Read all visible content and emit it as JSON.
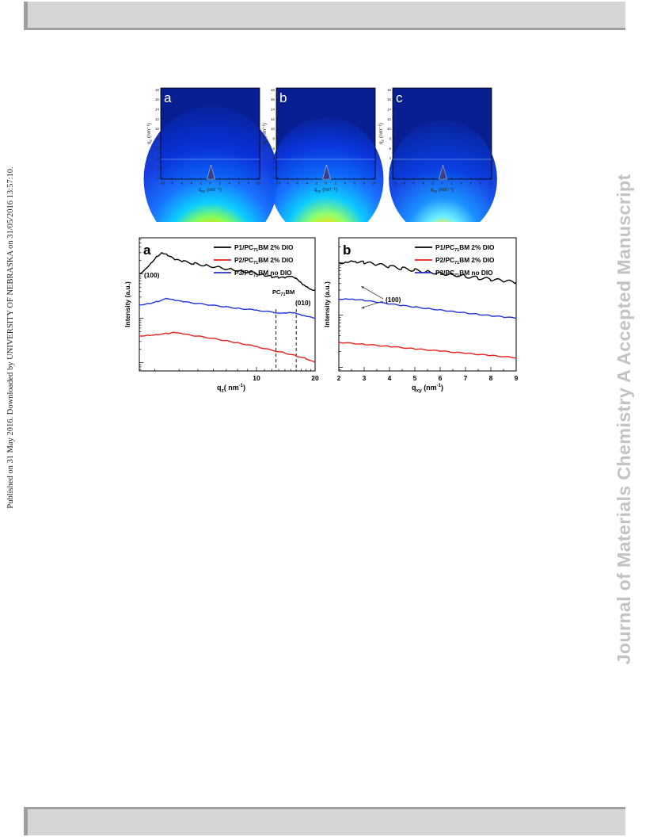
{
  "side_text": {
    "left": "Published on 31 May 2016. Downloaded by UNIVERSITY OF NEBRASKA on 31/05/2016 13:57:10.",
    "right": "Journal of Materials Chemistry A Accepted Manuscript"
  },
  "colors": {
    "p1": "#000000",
    "p2": "#e8201c",
    "p3": "#2032d8",
    "bars": "#d6d6d6"
  },
  "giwaxs_panels": [
    {
      "label": "a",
      "ylabel": "q",
      "ysub": "z",
      "yunit": "(nm⁻¹)",
      "xlabel": "q",
      "xsub": "xy",
      "xunit": "(nm⁻¹)",
      "yticks": [
        "18",
        "16",
        "14",
        "12",
        "10",
        "8",
        "6",
        "4",
        "2",
        "0"
      ],
      "xticks": [
        "-10",
        "-8",
        "-6",
        "-4",
        "-2",
        "0",
        "2",
        "4",
        "6",
        "8",
        "10"
      ]
    },
    {
      "label": "b",
      "ylabel": "q",
      "ysub": "z",
      "yunit": "(nm⁻¹)",
      "xlabel": "q",
      "xsub": "xy",
      "xunit": "(nm⁻¹)",
      "yticks": [
        "18",
        "16",
        "14",
        "12",
        "10",
        "8",
        "6",
        "4",
        "2",
        "0"
      ],
      "xticks": [
        "-10",
        "-8",
        "-6",
        "-4",
        "-2",
        "0",
        "2",
        "4",
        "6",
        "8",
        "10"
      ]
    },
    {
      "label": "c",
      "ylabel": "q",
      "ysub": "z",
      "yunit": "(nm⁻¹)",
      "xlabel": "q",
      "xsub": "xy",
      "xunit": "(nm⁻¹)",
      "yticks": [
        "18",
        "16",
        "14",
        "12",
        "10",
        "8",
        "6",
        "4",
        "2",
        "0"
      ],
      "xticks": [
        "-10",
        "-8",
        "-6",
        "-4",
        "-2",
        "0",
        "2",
        "4",
        "6",
        "8",
        "10"
      ]
    }
  ],
  "legend": [
    {
      "pre": "P1/PC",
      "sub": "71",
      "post": "BM 2% DIO",
      "color": "#000000"
    },
    {
      "pre": "P2/PC",
      "sub": "71",
      "post": "BM 2% DIO",
      "color": "#e8201c"
    },
    {
      "pre": "P3/PC",
      "sub": "71",
      "post": "BM no DIO",
      "color": "#2032d8"
    }
  ],
  "chart_data": [
    {
      "type": "line",
      "panel_label": "a",
      "xlabel_main": "q",
      "xlabel_sub": "z",
      "xlabel_unit": "( nm",
      "xlabel_sup": "-1",
      "xlabel_end": ")",
      "ylabel": "Intensity (a.u.)",
      "x_scale": "log",
      "y_scale": "log",
      "xlim": [
        2.5,
        20
      ],
      "x_tick_labels": [
        {
          "x": 10,
          "label": "10"
        },
        {
          "x": 20,
          "label": "20"
        }
      ],
      "annotations": [
        {
          "text": "(100)",
          "x": 3.3
        },
        {
          "text": "PC",
          "sub": "71",
          "post": "BM",
          "x": 14
        },
        {
          "text": "(010)",
          "x": 18
        }
      ],
      "reference_lines_x": [
        12.6,
        16.0
      ],
      "series": [
        {
          "name": "P1/PC71BM 2% DIO",
          "x": [
            2.5,
            2.7,
            2.9,
            3.1,
            3.3,
            3.5,
            3.8,
            4.2,
            4.8,
            5.5,
            6.5,
            7.5,
            8.5,
            10,
            11,
            12,
            13,
            14,
            14.5,
            15.2,
            16,
            16.8,
            17.5,
            18.2,
            19,
            20
          ],
          "y": [
            1.0,
            1.35,
            1.9,
            2.6,
            3.0,
            2.6,
            2.05,
            1.9,
            1.7,
            1.55,
            1.38,
            1.25,
            1.16,
            1.02,
            0.94,
            0.86,
            0.82,
            0.8,
            0.84,
            0.83,
            0.76,
            0.64,
            0.56,
            0.52,
            0.47,
            0.43
          ]
        },
        {
          "name": "P2/PC71BM 2% DIO",
          "x": [
            2.5,
            2.8,
            3.1,
            3.5,
            3.8,
            4.2,
            5,
            6,
            7,
            8,
            10,
            12,
            14,
            16,
            18,
            20
          ],
          "y": [
            0.04,
            0.0415,
            0.043,
            0.0455,
            0.048,
            0.044,
            0.0395,
            0.035,
            0.031,
            0.028,
            0.023,
            0.019,
            0.0165,
            0.0142,
            0.0123,
            0.01
          ]
        },
        {
          "name": "P3/PC71BM no DIO",
          "x": [
            2.5,
            2.8,
            3.1,
            3.5,
            3.8,
            4.2,
            5,
            6,
            7,
            8,
            10,
            12,
            13,
            14,
            15,
            16,
            17,
            18,
            20
          ],
          "y": [
            0.2,
            0.215,
            0.24,
            0.28,
            0.255,
            0.235,
            0.215,
            0.195,
            0.18,
            0.168,
            0.152,
            0.138,
            0.132,
            0.133,
            0.136,
            0.13,
            0.118,
            0.11,
            0.1
          ]
        }
      ]
    },
    {
      "type": "line",
      "panel_label": "b",
      "xlabel_main": "q",
      "xlabel_sub": "xy",
      "xlabel_unit": " (nm",
      "xlabel_sup": "-1",
      "xlabel_end": ")",
      "ylabel": "Intensity (a.u.)",
      "x_scale": "linear",
      "y_scale": "log",
      "xlim": [
        2,
        9
      ],
      "x_tick_labels": [
        {
          "x": 2,
          "label": "2"
        },
        {
          "x": 3,
          "label": "3"
        },
        {
          "x": 4,
          "label": "4"
        },
        {
          "x": 5,
          "label": "5"
        },
        {
          "x": 6,
          "label": "6"
        },
        {
          "x": 7,
          "label": "7"
        },
        {
          "x": 8,
          "label": "8"
        },
        {
          "x": 9,
          "label": "9"
        }
      ],
      "annotations": [
        {
          "text": "(100)",
          "x": 3.4
        }
      ],
      "series": [
        {
          "name": "P1/PC71BM 2% DIO",
          "x": [
            2,
            2.3,
            2.5,
            2.7,
            3,
            3.5,
            4,
            4.5,
            5,
            5.5,
            6,
            6.5,
            7,
            7.5,
            8,
            8.5,
            9
          ],
          "y": [
            1.0,
            1.05,
            1.15,
            1.06,
            1.0,
            0.93,
            0.85,
            0.78,
            0.72,
            0.67,
            0.63,
            0.59,
            0.55,
            0.51,
            0.48,
            0.45,
            0.42
          ]
        },
        {
          "name": "P2/PC71BM 2% DIO",
          "x": [
            2,
            3,
            4,
            5,
            6,
            7,
            8,
            9
          ],
          "y": [
            0.03,
            0.0275,
            0.025,
            0.0225,
            0.0205,
            0.0185,
            0.0168,
            0.0152
          ]
        },
        {
          "name": "P3/PC71BM no DIO",
          "x": [
            2,
            2.3,
            2.6,
            3,
            3.5,
            4,
            4.5,
            5,
            5.5,
            6,
            6.5,
            7,
            7.5,
            8,
            8.5,
            9
          ],
          "y": [
            0.2,
            0.205,
            0.2,
            0.19,
            0.176,
            0.163,
            0.152,
            0.142,
            0.133,
            0.125,
            0.117,
            0.11,
            0.103,
            0.097,
            0.092,
            0.087
          ]
        }
      ]
    }
  ]
}
